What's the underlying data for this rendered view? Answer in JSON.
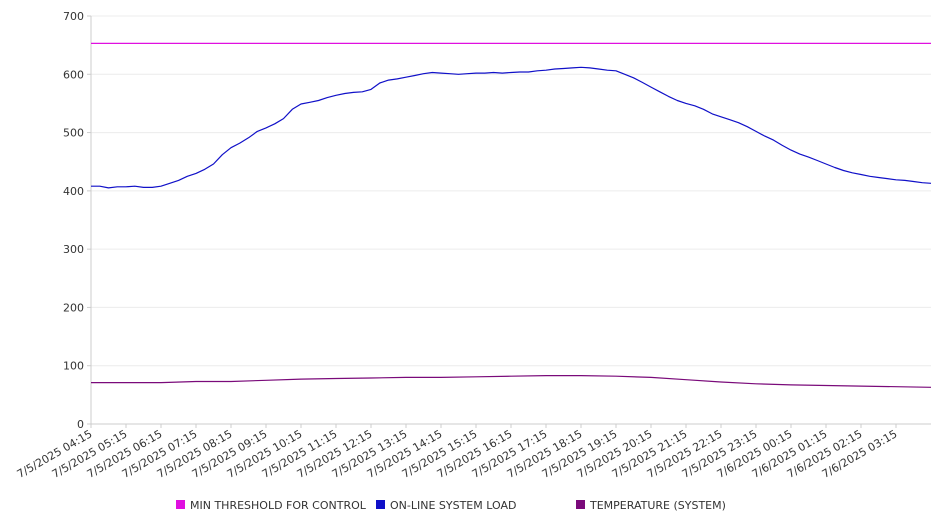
{
  "chart_data": {
    "type": "line",
    "title": "",
    "xlabel": "",
    "ylabel": "",
    "ylim": [
      0,
      700
    ],
    "yticks": [
      0,
      100,
      200,
      300,
      400,
      500,
      600,
      700
    ],
    "grid": true,
    "legend_position": "bottom",
    "x_ticks": [
      "7/5/2025 04:15",
      "7/5/2025 05:15",
      "7/5/2025 06:15",
      "7/5/2025 07:15",
      "7/5/2025 08:15",
      "7/5/2025 09:15",
      "7/5/2025 10:15",
      "7/5/2025 11:15",
      "7/5/2025 12:15",
      "7/5/2025 13:15",
      "7/5/2025 14:15",
      "7/5/2025 15:15",
      "7/5/2025 16:15",
      "7/5/2025 17:15",
      "7/5/2025 18:15",
      "7/5/2025 19:15",
      "7/5/2025 20:15",
      "7/5/2025 21:15",
      "7/5/2025 22:15",
      "7/5/2025 23:15",
      "7/6/2025 00:15",
      "7/6/2025 01:15",
      "7/6/2025 02:15",
      "7/6/2025 03:15"
    ],
    "x_range": [
      "7/5/2025 04:15",
      "7/6/2025 04:15"
    ],
    "series": [
      {
        "name": "MIN THRESHOLD FOR CONTROL",
        "color": "#e010e0",
        "points": [
          [
            "7/5/2025 04:15",
            653
          ],
          [
            "7/6/2025 04:15",
            653
          ]
        ]
      },
      {
        "name": "ON-LINE SYSTEM LOAD",
        "color": "#1010c8",
        "points": [
          [
            "7/5/2025 04:15",
            408
          ],
          [
            "7/5/2025 04:30",
            408
          ],
          [
            "7/5/2025 04:45",
            405
          ],
          [
            "7/5/2025 05:00",
            407
          ],
          [
            "7/5/2025 05:15",
            407
          ],
          [
            "7/5/2025 05:30",
            408
          ],
          [
            "7/5/2025 05:45",
            406
          ],
          [
            "7/5/2025 06:00",
            406
          ],
          [
            "7/5/2025 06:15",
            408
          ],
          [
            "7/5/2025 06:30",
            413
          ],
          [
            "7/5/2025 06:45",
            418
          ],
          [
            "7/5/2025 07:00",
            425
          ],
          [
            "7/5/2025 07:15",
            430
          ],
          [
            "7/5/2025 07:30",
            437
          ],
          [
            "7/5/2025 07:45",
            446
          ],
          [
            "7/5/2025 08:00",
            462
          ],
          [
            "7/5/2025 08:15",
            474
          ],
          [
            "7/5/2025 08:30",
            482
          ],
          [
            "7/5/2025 08:45",
            491
          ],
          [
            "7/5/2025 09:00",
            502
          ],
          [
            "7/5/2025 09:15",
            508
          ],
          [
            "7/5/2025 09:30",
            515
          ],
          [
            "7/5/2025 09:45",
            524
          ],
          [
            "7/5/2025 10:00",
            540
          ],
          [
            "7/5/2025 10:15",
            549
          ],
          [
            "7/5/2025 10:30",
            552
          ],
          [
            "7/5/2025 10:45",
            555
          ],
          [
            "7/5/2025 11:00",
            560
          ],
          [
            "7/5/2025 11:15",
            564
          ],
          [
            "7/5/2025 11:30",
            567
          ],
          [
            "7/5/2025 11:45",
            569
          ],
          [
            "7/5/2025 12:00",
            570
          ],
          [
            "7/5/2025 12:15",
            574
          ],
          [
            "7/5/2025 12:30",
            585
          ],
          [
            "7/5/2025 12:45",
            590
          ],
          [
            "7/5/2025 13:00",
            592
          ],
          [
            "7/5/2025 13:15",
            595
          ],
          [
            "7/5/2025 13:30",
            598
          ],
          [
            "7/5/2025 13:45",
            601
          ],
          [
            "7/5/2025 14:00",
            603
          ],
          [
            "7/5/2025 14:15",
            602
          ],
          [
            "7/5/2025 14:30",
            601
          ],
          [
            "7/5/2025 14:45",
            600
          ],
          [
            "7/5/2025 15:00",
            601
          ],
          [
            "7/5/2025 15:15",
            602
          ],
          [
            "7/5/2025 15:30",
            602
          ],
          [
            "7/5/2025 15:45",
            603
          ],
          [
            "7/5/2025 16:00",
            602
          ],
          [
            "7/5/2025 16:15",
            603
          ],
          [
            "7/5/2025 16:30",
            604
          ],
          [
            "7/5/2025 16:45",
            604
          ],
          [
            "7/5/2025 17:00",
            606
          ],
          [
            "7/5/2025 17:15",
            607
          ],
          [
            "7/5/2025 17:30",
            609
          ],
          [
            "7/5/2025 17:45",
            610
          ],
          [
            "7/5/2025 18:00",
            611
          ],
          [
            "7/5/2025 18:15",
            612
          ],
          [
            "7/5/2025 18:30",
            611
          ],
          [
            "7/5/2025 18:45",
            609
          ],
          [
            "7/5/2025 19:00",
            607
          ],
          [
            "7/5/2025 19:15",
            606
          ],
          [
            "7/5/2025 19:30",
            600
          ],
          [
            "7/5/2025 19:45",
            594
          ],
          [
            "7/5/2025 20:00",
            586
          ],
          [
            "7/5/2025 20:15",
            578
          ],
          [
            "7/5/2025 20:30",
            570
          ],
          [
            "7/5/2025 20:45",
            562
          ],
          [
            "7/5/2025 21:00",
            555
          ],
          [
            "7/5/2025 21:15",
            550
          ],
          [
            "7/5/2025 21:30",
            546
          ],
          [
            "7/5/2025 21:45",
            540
          ],
          [
            "7/5/2025 22:00",
            532
          ],
          [
            "7/5/2025 22:15",
            527
          ],
          [
            "7/5/2025 22:30",
            522
          ],
          [
            "7/5/2025 22:45",
            517
          ],
          [
            "7/5/2025 23:00",
            510
          ],
          [
            "7/5/2025 23:15",
            502
          ],
          [
            "7/5/2025 23:30",
            494
          ],
          [
            "7/5/2025 23:45",
            487
          ],
          [
            "7/6/2025 00:00",
            478
          ],
          [
            "7/6/2025 00:15",
            470
          ],
          [
            "7/6/2025 00:30",
            463
          ],
          [
            "7/6/2025 00:45",
            458
          ],
          [
            "7/6/2025 01:00",
            452
          ],
          [
            "7/6/2025 01:15",
            446
          ],
          [
            "7/6/2025 01:30",
            440
          ],
          [
            "7/6/2025 01:45",
            435
          ],
          [
            "7/6/2025 02:00",
            431
          ],
          [
            "7/6/2025 02:15",
            428
          ],
          [
            "7/6/2025 02:30",
            425
          ],
          [
            "7/6/2025 02:45",
            423
          ],
          [
            "7/6/2025 03:00",
            421
          ],
          [
            "7/6/2025 03:15",
            419
          ],
          [
            "7/6/2025 03:30",
            418
          ],
          [
            "7/6/2025 03:45",
            416
          ],
          [
            "7/6/2025 04:00",
            414
          ],
          [
            "7/6/2025 04:15",
            413
          ]
        ]
      },
      {
        "name": "TEMPERATURE (SYSTEM)",
        "color": "#7a0a7a",
        "points": [
          [
            "7/5/2025 04:15",
            71
          ],
          [
            "7/5/2025 06:15",
            71
          ],
          [
            "7/5/2025 07:15",
            73
          ],
          [
            "7/5/2025 08:15",
            73
          ],
          [
            "7/5/2025 09:15",
            75
          ],
          [
            "7/5/2025 10:15",
            77
          ],
          [
            "7/5/2025 11:15",
            78
          ],
          [
            "7/5/2025 12:15",
            79
          ],
          [
            "7/5/2025 13:15",
            80
          ],
          [
            "7/5/2025 14:15",
            80
          ],
          [
            "7/5/2025 15:15",
            81
          ],
          [
            "7/5/2025 16:15",
            82
          ],
          [
            "7/5/2025 17:15",
            83
          ],
          [
            "7/5/2025 18:15",
            83
          ],
          [
            "7/5/2025 19:15",
            82
          ],
          [
            "7/5/2025 20:15",
            80
          ],
          [
            "7/5/2025 21:15",
            76
          ],
          [
            "7/5/2025 22:15",
            72
          ],
          [
            "7/5/2025 23:15",
            69
          ],
          [
            "7/6/2025 00:15",
            67
          ],
          [
            "7/6/2025 01:15",
            66
          ],
          [
            "7/6/2025 02:15",
            65
          ],
          [
            "7/6/2025 03:15",
            64
          ],
          [
            "7/6/2025 04:15",
            63
          ]
        ]
      }
    ]
  }
}
